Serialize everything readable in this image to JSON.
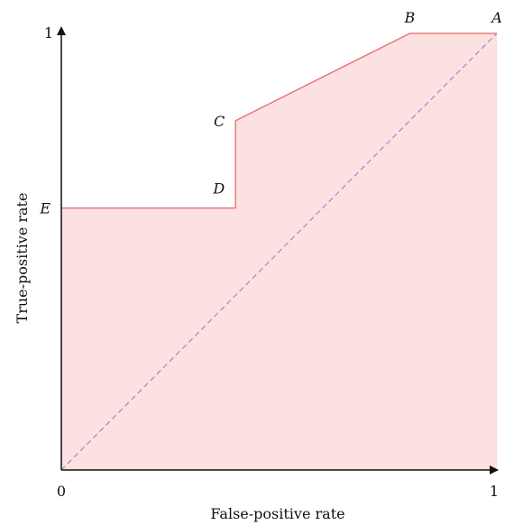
{
  "chart_data": {
    "type": "area",
    "title": "",
    "xlabel": "False-positive rate",
    "ylabel": "True-positive rate",
    "xlim": [
      0,
      1
    ],
    "ylim": [
      0,
      1
    ],
    "x_ticks": [
      "0",
      "1"
    ],
    "y_ticks": [
      "1"
    ],
    "grid": false,
    "curve": {
      "points": [
        {
          "label": "E",
          "x": 0.0,
          "y": 0.6
        },
        {
          "label": "D",
          "x": 0.4,
          "y": 0.6
        },
        {
          "label": "C",
          "x": 0.4,
          "y": 0.8
        },
        {
          "label": "B",
          "x": 0.8,
          "y": 1.0
        },
        {
          "label": "A",
          "x": 1.0,
          "y": 1.0
        }
      ],
      "line_color": "#e86a6a",
      "fill_color": "#fde0e0"
    },
    "diagonal": {
      "from": [
        0,
        0
      ],
      "to": [
        1,
        1
      ],
      "style": "dashed",
      "color": "#8e8fd4"
    }
  }
}
